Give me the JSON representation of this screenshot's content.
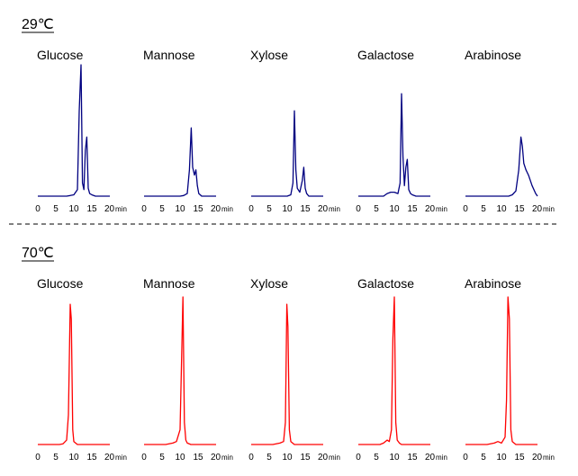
{
  "separator": "dashed",
  "chart_data": [
    {
      "section": "29℃",
      "type": "line",
      "color": "#000080",
      "x_tick_labels": [
        "0",
        "5",
        "10",
        "15",
        "20"
      ],
      "x_unit": "min",
      "panels": [
        {
          "title": "Glucose",
          "xlim": [
            0,
            20
          ],
          "ylim": [
            0,
            1
          ],
          "x": [
            0,
            8,
            9,
            10,
            11,
            11.5,
            12,
            12.4,
            12.8,
            13.2,
            13.6,
            14,
            14.4,
            15,
            16,
            20
          ],
          "y": [
            0,
            0,
            0.005,
            0.01,
            0.05,
            0.65,
            1.0,
            0.1,
            0.05,
            0.35,
            0.45,
            0.06,
            0.02,
            0.01,
            0,
            0
          ]
        },
        {
          "title": "Mannose",
          "xlim": [
            0,
            20
          ],
          "ylim": [
            0,
            1
          ],
          "x": [
            0,
            10,
            11,
            12,
            12.6,
            13.1,
            13.5,
            14,
            14.4,
            14.8,
            15.2,
            15.6,
            16,
            20
          ],
          "y": [
            0,
            0,
            0.005,
            0.02,
            0.2,
            0.52,
            0.22,
            0.16,
            0.2,
            0.08,
            0.02,
            0.01,
            0,
            0
          ]
        },
        {
          "title": "Xylose",
          "xlim": [
            0,
            20
          ],
          "ylim": [
            0,
            1
          ],
          "x": [
            0,
            10,
            11,
            11.6,
            12,
            12.4,
            12.8,
            13.5,
            14.2,
            14.6,
            15,
            15.4,
            16,
            20
          ],
          "y": [
            0,
            0,
            0.01,
            0.1,
            0.65,
            0.2,
            0.06,
            0.03,
            0.12,
            0.22,
            0.06,
            0.02,
            0,
            0
          ]
        },
        {
          "title": "Galactose",
          "xlim": [
            0,
            20
          ],
          "ylim": [
            0,
            1
          ],
          "x": [
            0,
            7,
            8,
            9,
            10,
            11,
            11.6,
            12,
            12.4,
            12.8,
            13.2,
            13.6,
            14,
            14.5,
            15,
            16,
            20
          ],
          "y": [
            0,
            0,
            0.02,
            0.03,
            0.03,
            0.02,
            0.1,
            0.78,
            0.3,
            0.08,
            0.22,
            0.28,
            0.05,
            0.02,
            0.01,
            0,
            0
          ]
        },
        {
          "title": "Arabinose",
          "xlim": [
            0,
            20
          ],
          "ylim": [
            0,
            1
          ],
          "x": [
            0,
            12,
            13,
            14,
            14.8,
            15.4,
            15.8,
            16.2,
            16.8,
            17.5,
            18.5,
            19.5,
            20
          ],
          "y": [
            0,
            0,
            0.01,
            0.04,
            0.2,
            0.45,
            0.38,
            0.25,
            0.2,
            0.16,
            0.08,
            0.02,
            0
          ]
        }
      ]
    },
    {
      "section": "70℃",
      "type": "line",
      "color": "#ff0000",
      "x_tick_labels": [
        "0",
        "5",
        "10",
        "15",
        "20"
      ],
      "x_unit": "min",
      "panels": [
        {
          "title": "Glucose",
          "xlim": [
            0,
            20
          ],
          "ylim": [
            0,
            1
          ],
          "x": [
            0,
            6,
            7,
            8,
            8.5,
            9,
            9.3,
            9.7,
            10,
            10.5,
            11,
            12,
            20
          ],
          "y": [
            0,
            0,
            0.005,
            0.03,
            0.2,
            0.95,
            0.85,
            0.1,
            0.02,
            0.01,
            0,
            0,
            0
          ]
        },
        {
          "title": "Mannose",
          "xlim": [
            0,
            20
          ],
          "ylim": [
            0,
            1
          ],
          "x": [
            0,
            6,
            8,
            9,
            10,
            10.4,
            10.8,
            11.2,
            11.6,
            12,
            13,
            20
          ],
          "y": [
            0,
            0,
            0.01,
            0.02,
            0.1,
            0.55,
            1.0,
            0.15,
            0.03,
            0.01,
            0,
            0
          ]
        },
        {
          "title": "Xylose",
          "xlim": [
            0,
            20
          ],
          "ylim": [
            0,
            1
          ],
          "x": [
            0,
            6,
            8,
            9,
            9.5,
            9.9,
            10.2,
            10.6,
            11,
            12,
            20
          ],
          "y": [
            0,
            0,
            0.01,
            0.02,
            0.15,
            0.95,
            0.8,
            0.1,
            0.02,
            0,
            0
          ]
        },
        {
          "title": "Galactose",
          "xlim": [
            0,
            20
          ],
          "ylim": [
            0,
            1
          ],
          "x": [
            0,
            6,
            7,
            8,
            8.6,
            9.2,
            9.6,
            10,
            10.4,
            10.8,
            11.4,
            12,
            20
          ],
          "y": [
            0,
            0,
            0.01,
            0.03,
            0.02,
            0.1,
            0.72,
            1.0,
            0.15,
            0.03,
            0.01,
            0,
            0
          ]
        },
        {
          "title": "Arabinose",
          "xlim": [
            0,
            20
          ],
          "ylim": [
            0,
            1
          ],
          "x": [
            0,
            6,
            8,
            9,
            10,
            11,
            11.4,
            11.8,
            12.2,
            12.6,
            13,
            14,
            20
          ],
          "y": [
            0,
            0,
            0.01,
            0.02,
            0.01,
            0.05,
            0.3,
            1.0,
            0.85,
            0.1,
            0.02,
            0,
            0
          ]
        }
      ]
    }
  ]
}
